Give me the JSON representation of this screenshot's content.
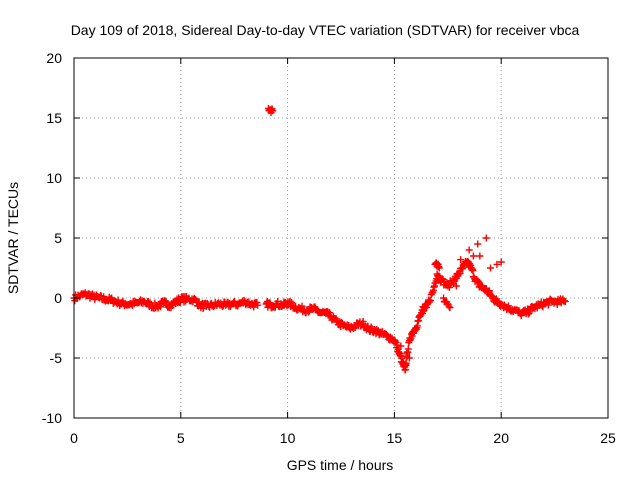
{
  "chart_data": {
    "type": "scatter",
    "title": "Day 109 of 2018, Sidereal Day-to-day VTEC variation (SDTVAR) for receiver vbca",
    "xlabel": "GPS time / hours",
    "ylabel": "SDTVAR / TECUs",
    "xlim": [
      0,
      25
    ],
    "ylim": [
      -10,
      20
    ],
    "xticks": [
      0,
      5,
      10,
      15,
      20,
      25
    ],
    "yticks": [
      -10,
      -5,
      0,
      5,
      10,
      15,
      20
    ],
    "grid": true,
    "marker_color": "#ff0000",
    "series": [
      {
        "name": "SDTVAR",
        "points": [
          [
            0.0,
            0.0
          ],
          [
            0.3,
            0.2
          ],
          [
            0.6,
            0.3
          ],
          [
            0.9,
            0.1
          ],
          [
            1.2,
            0.0
          ],
          [
            1.5,
            -0.1
          ],
          [
            1.8,
            -0.2
          ],
          [
            2.1,
            -0.4
          ],
          [
            2.4,
            -0.5
          ],
          [
            2.7,
            -0.5
          ],
          [
            3.0,
            -0.4
          ],
          [
            3.3,
            -0.3
          ],
          [
            3.6,
            -0.6
          ],
          [
            3.9,
            -0.7
          ],
          [
            4.2,
            -0.4
          ],
          [
            4.5,
            -0.6
          ],
          [
            4.8,
            -0.3
          ],
          [
            5.0,
            -0.1
          ],
          [
            5.3,
            -0.1
          ],
          [
            5.6,
            -0.1
          ],
          [
            5.9,
            -0.6
          ],
          [
            6.2,
            -0.7
          ],
          [
            6.5,
            -0.6
          ],
          [
            6.8,
            -0.5
          ],
          [
            7.1,
            -0.6
          ],
          [
            7.4,
            -0.5
          ],
          [
            7.7,
            -0.5
          ],
          [
            8.0,
            -0.3
          ],
          [
            8.3,
            -0.5
          ],
          [
            8.6,
            -0.6
          ],
          [
            9.0,
            -0.5
          ],
          [
            9.2,
            -0.6
          ],
          [
            9.5,
            -0.5
          ],
          [
            9.8,
            -0.6
          ],
          [
            10.0,
            -0.4
          ],
          [
            10.3,
            -0.7
          ],
          [
            10.6,
            -0.9
          ],
          [
            10.9,
            -1.0
          ],
          [
            11.2,
            -0.9
          ],
          [
            11.5,
            -1.2
          ],
          [
            11.8,
            -1.3
          ],
          [
            12.0,
            -1.5
          ],
          [
            12.3,
            -2.0
          ],
          [
            12.6,
            -2.3
          ],
          [
            12.9,
            -2.5
          ],
          [
            13.2,
            -2.3
          ],
          [
            13.5,
            -2.1
          ],
          [
            13.8,
            -2.6
          ],
          [
            14.1,
            -2.7
          ],
          [
            14.4,
            -3.0
          ],
          [
            14.7,
            -3.2
          ],
          [
            15.0,
            -3.5
          ],
          [
            15.2,
            -4.5
          ],
          [
            15.4,
            -5.5
          ],
          [
            15.5,
            -6.0
          ],
          [
            15.6,
            -4.5
          ],
          [
            15.8,
            -3.0
          ],
          [
            16.0,
            -2.5
          ],
          [
            16.2,
            -1.5
          ],
          [
            16.5,
            -0.8
          ],
          [
            16.8,
            0.5
          ],
          [
            17.0,
            2.0
          ],
          [
            17.2,
            1.5
          ],
          [
            17.5,
            1.0
          ],
          [
            17.8,
            1.5
          ],
          [
            18.0,
            2.0
          ],
          [
            18.2,
            2.5
          ],
          [
            18.4,
            3.0
          ],
          [
            18.6,
            2.5
          ],
          [
            18.8,
            1.5
          ],
          [
            19.0,
            1.0
          ],
          [
            19.2,
            0.8
          ],
          [
            19.4,
            0.5
          ],
          [
            19.6,
            0.0
          ],
          [
            19.8,
            -0.3
          ],
          [
            20.0,
            -0.5
          ],
          [
            20.3,
            -0.8
          ],
          [
            20.6,
            -1.0
          ],
          [
            20.9,
            -1.3
          ],
          [
            21.2,
            -1.2
          ],
          [
            21.5,
            -0.8
          ],
          [
            21.8,
            -0.6
          ],
          [
            22.1,
            -0.4
          ],
          [
            22.4,
            -0.3
          ],
          [
            22.7,
            -0.3
          ],
          [
            23.0,
            -0.3
          ],
          [
            9.1,
            15.8
          ],
          [
            9.3,
            15.6
          ],
          [
            15.3,
            -4.0
          ],
          [
            15.7,
            -5.0
          ],
          [
            16.3,
            -1.0
          ],
          [
            16.6,
            -0.2
          ],
          [
            17.3,
            0.0
          ],
          [
            17.6,
            -0.8
          ],
          [
            16.9,
            2.8
          ],
          [
            17.1,
            2.5
          ],
          [
            18.5,
            4.0
          ],
          [
            18.9,
            4.5
          ],
          [
            19.3,
            5.0
          ],
          [
            19.0,
            3.5
          ],
          [
            19.5,
            2.5
          ],
          [
            20.0,
            3.0
          ],
          [
            19.8,
            2.8
          ],
          [
            18.7,
            3.5
          ],
          [
            17.9,
            1.0
          ],
          [
            18.1,
            3.2
          ]
        ]
      }
    ]
  }
}
